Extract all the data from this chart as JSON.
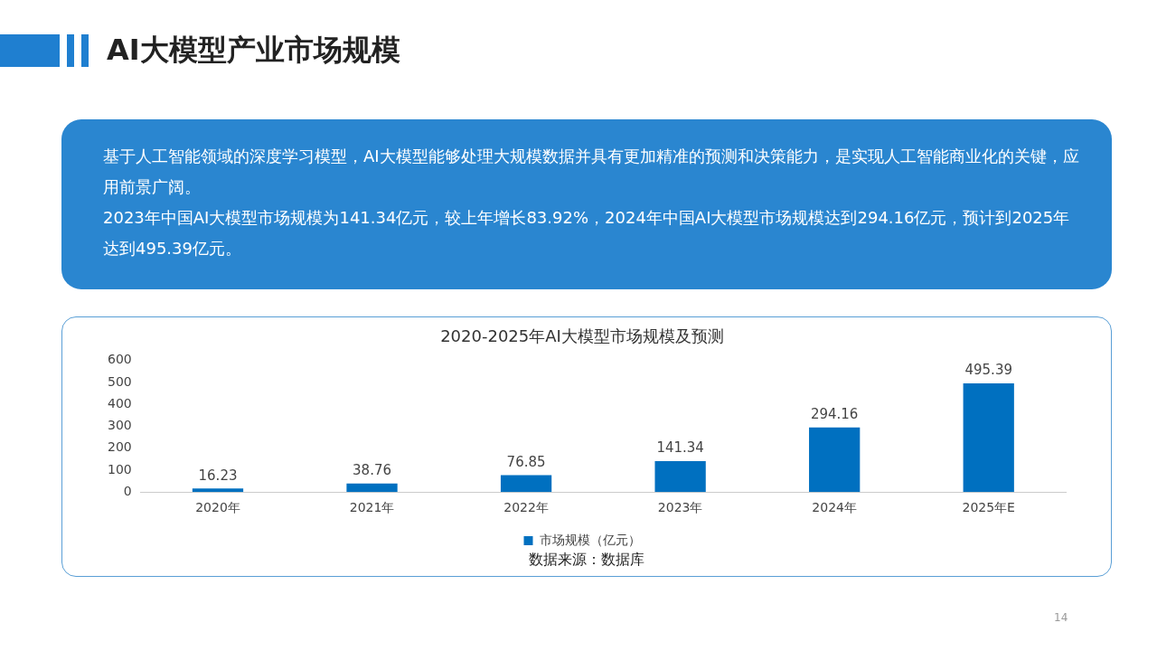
{
  "chart_data": {
    "type": "bar",
    "title": "AI大模型产业市场规模",
    "subtitle": "2020-2025年AI大模型市场规模及预测",
    "categories": [
      "2020年",
      "2021年",
      "2022年",
      "2023年",
      "2024年",
      "2025年E"
    ],
    "series": [
      {
        "name": "市场规模（亿元）",
        "color": "#0070c0",
        "values": [
          16.23,
          38.76,
          76.85,
          141.34,
          294.16,
          495.39
        ]
      }
    ],
    "ylim": [
      0,
      600
    ],
    "yticks": [
      0,
      100,
      200,
      300,
      400,
      500,
      600
    ],
    "data_labels": true,
    "legend": "bottom",
    "grid": false,
    "annotations": [
      "基于人工智能领域的深度学习模型，AI大模型能够处理大规模数据并具有更加精准的预测和决策能力，是实现人工智能商业化的关键，应用前景广阔。",
      "2023年中国AI大模型市场规模为141.34亿元，较上年增长83.92%，2024年中国AI大模型市场规模达到294.16亿元，预计到2025年达到495.39亿元。",
      "数据来源：数据库",
      "14"
    ]
  }
}
